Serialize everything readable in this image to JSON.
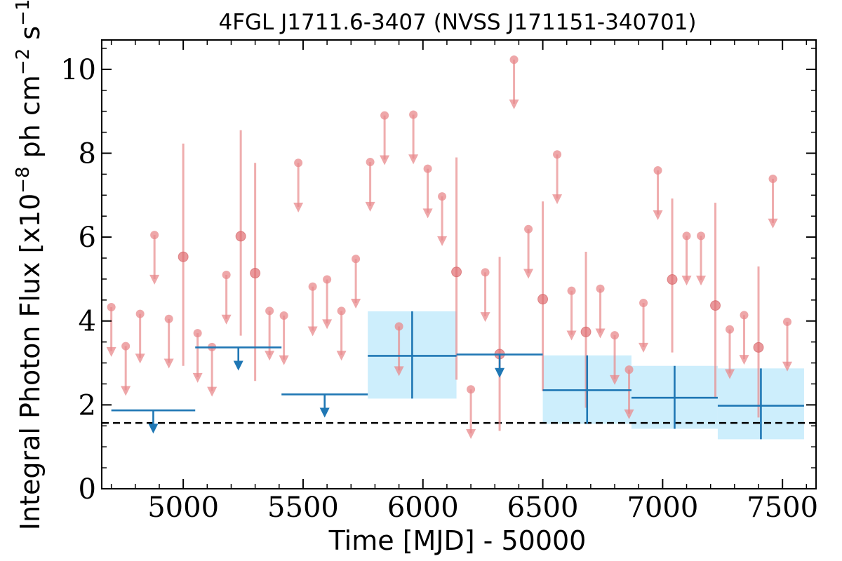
{
  "chart_data": {
    "type": "scatter",
    "title": "4FGL J1711.6-3407 (NVSS J171151-340701)",
    "xlabel": "Time [MJD] - 50000",
    "ylabel_main": "Integral Photon Flux [x10",
    "ylabel_exp": "−8",
    "ylabel_mid": " ph cm",
    "ylabel_exp2": "−2",
    "ylabel_end": " s",
    "ylabel_exp3": "−1",
    "ylabel_close": "]",
    "xlim": [
      4660,
      7640
    ],
    "ylim": [
      0,
      10.7
    ],
    "x_ticks": [
      5000,
      5500,
      6000,
      6500,
      7000,
      7500
    ],
    "x_tick_labels": [
      "5000",
      "5500",
      "6000",
      "6500",
      "7000",
      "7500"
    ],
    "y_ticks": [
      0,
      2,
      4,
      6,
      8,
      10
    ],
    "y_tick_labels": [
      "0",
      "2",
      "4",
      "6",
      "8",
      "10"
    ],
    "colors": {
      "short_bins": "#e88a8c",
      "long_bins": "#1f77b4",
      "band": "#cdeefc",
      "reference": "#000000"
    },
    "reference_line": {
      "y": 1.57,
      "style": "dashed"
    },
    "short_upper_limits": [
      {
        "x": 4700,
        "y": 4.33
      },
      {
        "x": 4760,
        "y": 3.4
      },
      {
        "x": 4820,
        "y": 4.17
      },
      {
        "x": 4880,
        "y": 6.05
      },
      {
        "x": 4940,
        "y": 4.05
      },
      {
        "x": 5060,
        "y": 3.71
      },
      {
        "x": 5120,
        "y": 3.38
      },
      {
        "x": 5180,
        "y": 5.1
      },
      {
        "x": 5360,
        "y": 4.24
      },
      {
        "x": 5420,
        "y": 4.13
      },
      {
        "x": 5480,
        "y": 7.77
      },
      {
        "x": 5540,
        "y": 4.82
      },
      {
        "x": 5600,
        "y": 4.99
      },
      {
        "x": 5660,
        "y": 4.24
      },
      {
        "x": 5720,
        "y": 5.48
      },
      {
        "x": 5780,
        "y": 7.79
      },
      {
        "x": 5840,
        "y": 8.9
      },
      {
        "x": 5900,
        "y": 3.87
      },
      {
        "x": 5960,
        "y": 8.92
      },
      {
        "x": 6020,
        "y": 7.63
      },
      {
        "x": 6080,
        "y": 6.97
      },
      {
        "x": 6200,
        "y": 2.37
      },
      {
        "x": 6260,
        "y": 5.16
      },
      {
        "x": 6380,
        "y": 10.23
      },
      {
        "x": 6440,
        "y": 6.19
      },
      {
        "x": 6560,
        "y": 7.97
      },
      {
        "x": 6620,
        "y": 4.72
      },
      {
        "x": 6740,
        "y": 4.77
      },
      {
        "x": 6800,
        "y": 3.66
      },
      {
        "x": 6860,
        "y": 2.84
      },
      {
        "x": 6920,
        "y": 4.43
      },
      {
        "x": 6980,
        "y": 7.59
      },
      {
        "x": 7100,
        "y": 6.03
      },
      {
        "x": 7160,
        "y": 6.03
      },
      {
        "x": 7280,
        "y": 3.8
      },
      {
        "x": 7340,
        "y": 4.14
      },
      {
        "x": 7460,
        "y": 7.39
      },
      {
        "x": 7520,
        "y": 3.98
      }
    ],
    "short_detections": [
      {
        "x": 5000,
        "y": 5.53,
        "low": 2.93,
        "high": 8.23
      },
      {
        "x": 5240,
        "y": 6.02,
        "low": 3.65,
        "high": 8.55
      },
      {
        "x": 5300,
        "y": 5.14,
        "low": 2.57,
        "high": 7.77
      },
      {
        "x": 6140,
        "y": 5.17,
        "low": 2.6,
        "high": 7.9
      },
      {
        "x": 6320,
        "y": 3.21,
        "low": 1.38,
        "high": 5.53
      },
      {
        "x": 6500,
        "y": 4.52,
        "low": 2.33,
        "high": 6.85
      },
      {
        "x": 6680,
        "y": 3.74,
        "low": 1.93,
        "high": 5.65
      },
      {
        "x": 7040,
        "y": 4.99,
        "low": 3.25,
        "high": 6.92
      },
      {
        "x": 7220,
        "y": 4.37,
        "low": 2.17,
        "high": 6.82
      },
      {
        "x": 7400,
        "y": 3.37,
        "low": 1.7,
        "high": 5.3
      }
    ],
    "long_upper_limits": [
      {
        "x0": 4700,
        "x1": 5050,
        "y": 1.87,
        "arrow_x": 4875
      },
      {
        "x0": 5050,
        "x1": 5410,
        "y": 3.37,
        "arrow_x": 5230
      },
      {
        "x0": 5410,
        "x1": 5770,
        "y": 2.25,
        "arrow_x": 5590
      },
      {
        "x0": 6140,
        "x1": 6500,
        "y": 3.2,
        "arrow_x": 6320
      }
    ],
    "long_detections": [
      {
        "x0": 5770,
        "x1": 6140,
        "xc": 5955,
        "y": 3.17,
        "low": 2.15,
        "high": 4.23
      },
      {
        "x0": 6500,
        "x1": 6870,
        "xc": 6685,
        "y": 2.35,
        "low": 1.55,
        "high": 3.18
      },
      {
        "x0": 6870,
        "x1": 7230,
        "xc": 7050,
        "y": 2.17,
        "low": 1.43,
        "high": 2.93
      },
      {
        "x0": 7230,
        "x1": 7590,
        "xc": 7410,
        "y": 1.98,
        "low": 1.18,
        "high": 2.87
      }
    ]
  }
}
